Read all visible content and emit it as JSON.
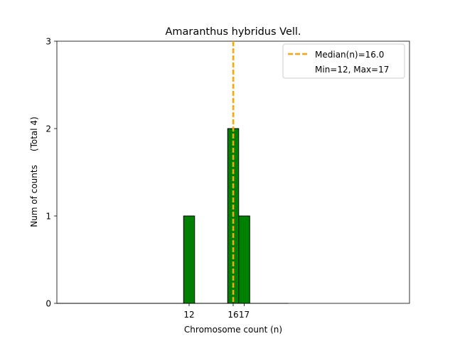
{
  "chart_data": {
    "type": "bar",
    "title": "Amaranthus hybridus Vell.",
    "xlabel": "Chromosome count (n)",
    "ylabel": "Num of counts     (Total 4)",
    "xlim": [
      0,
      32
    ],
    "ylim": [
      0,
      3
    ],
    "bar_width": 1,
    "x_ticks": [
      12,
      16,
      17
    ],
    "y_ticks": [
      0,
      1,
      2,
      3
    ],
    "bins": [
      {
        "x": 12,
        "count": 1
      },
      {
        "x": 16,
        "count": 2
      },
      {
        "x": 17,
        "count": 1
      }
    ],
    "median_line": {
      "x": 16.0,
      "color": "#ffa500",
      "style": "dashed"
    },
    "legend": {
      "placement": "top-right",
      "entries": [
        "Median(n)=16.0",
        "Min=12, Max=17"
      ]
    },
    "bar_color": "#008000",
    "bar_edge_color": "#000000",
    "grid": false
  }
}
